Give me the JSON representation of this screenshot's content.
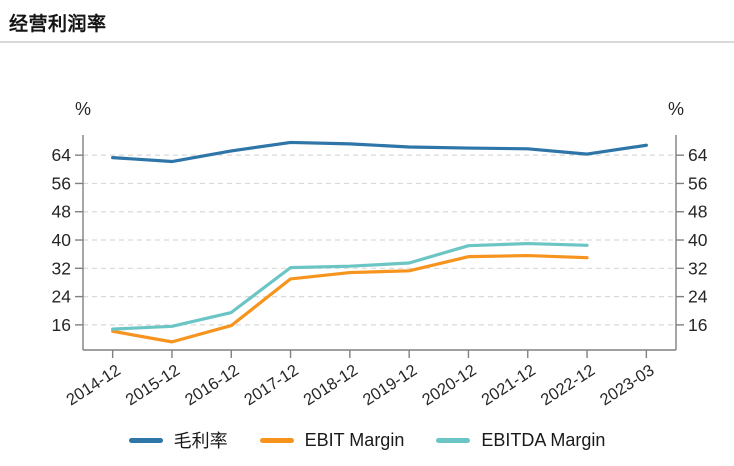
{
  "page": {
    "title": "经营利润率"
  },
  "axes": {
    "left_unit": "%",
    "right_unit": "%"
  },
  "chart_data": {
    "type": "line",
    "title": "经营利润率",
    "categories": [
      "2014-12",
      "2015-12",
      "2016-12",
      "2017-12",
      "2018-12",
      "2019-12",
      "2020-12",
      "2021-12",
      "2022-12",
      "2023-03"
    ],
    "series": [
      {
        "name": "毛利率",
        "color": "#2E75A8",
        "values": [
          63.3,
          62.2,
          65.2,
          67.6,
          67.2,
          66.3,
          66.0,
          65.8,
          64.3,
          66.8
        ]
      },
      {
        "name": "EBIT Margin",
        "color": "#F7941E",
        "values": [
          14.2,
          11.2,
          15.8,
          29.0,
          30.8,
          31.3,
          35.3,
          35.6,
          35.0,
          null
        ]
      },
      {
        "name": "EBITDA Margin",
        "color": "#6CC5C5",
        "values": [
          14.8,
          15.6,
          19.5,
          32.2,
          32.6,
          33.5,
          38.4,
          39.0,
          38.5,
          null
        ]
      }
    ],
    "y_ticks": [
      16,
      24,
      32,
      40,
      48,
      56,
      64
    ],
    "ylim": [
      8.9,
      69.7
    ],
    "ylabel": "%",
    "grid": "horizontal-dashed",
    "grid_color": "#d9d9d9",
    "axis_color": "#808080",
    "legend_position": "bottom"
  }
}
